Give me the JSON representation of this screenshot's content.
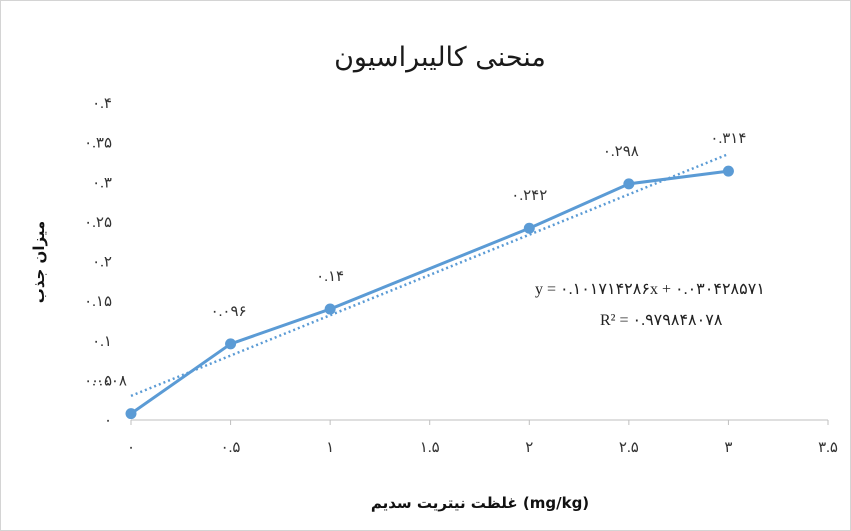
{
  "chart_data": {
    "type": "line",
    "title": "منحنی کالیبراسیون",
    "xlabel": "غلظت نیتریت سدیم (mg/kg)",
    "ylabel": "میزان جذب",
    "xlim": [
      0,
      3.5
    ],
    "ylim": [
      0,
      0.4
    ],
    "x_ticks": [
      0,
      0.5,
      1,
      1.5,
      2,
      2.5,
      3,
      3.5
    ],
    "x_tick_labels": [
      "۰",
      "۰.۵",
      "۱",
      "۱.۵",
      "۲",
      "۲.۵",
      "۳",
      "۳.۵"
    ],
    "y_ticks": [
      0,
      0.05,
      0.1,
      0.15,
      0.2,
      0.25,
      0.3,
      0.35,
      0.4
    ],
    "y_tick_labels": [
      "۰",
      "۰.۰۵",
      "۰.۱",
      "۰.۱۵",
      "۰.۲",
      "۰.۲۵",
      "۰.۳",
      "۰.۳۵",
      "۰.۴"
    ],
    "grid": false,
    "legend": "none",
    "series": [
      {
        "x": [
          0,
          0.5,
          1,
          2,
          2.5,
          3
        ],
        "y": [
          0.008,
          0.096,
          0.14,
          0.242,
          0.298,
          0.314
        ],
        "labels": [
          "۰.۰۰۸",
          "۰.۰۹۶",
          "۰.۱۴",
          "۰.۲۴۲",
          "۰.۲۹۸",
          "۰.۳۱۴"
        ],
        "color": "#5b9bd5",
        "marker": "circle"
      }
    ],
    "trendline": {
      "type": "linear",
      "slope": 0.1017142857,
      "intercept": 0.0304285714,
      "style": "dotted",
      "color": "#5b9bd5",
      "equation_text": "y = ۰.۱۰۱۷۱۴۲۸۶x + ۰.۰۳۰۴۲۸۵۷۱",
      "r2_text": "R² = ۰.۹۷۹۸۴۸۰۷۸"
    }
  }
}
